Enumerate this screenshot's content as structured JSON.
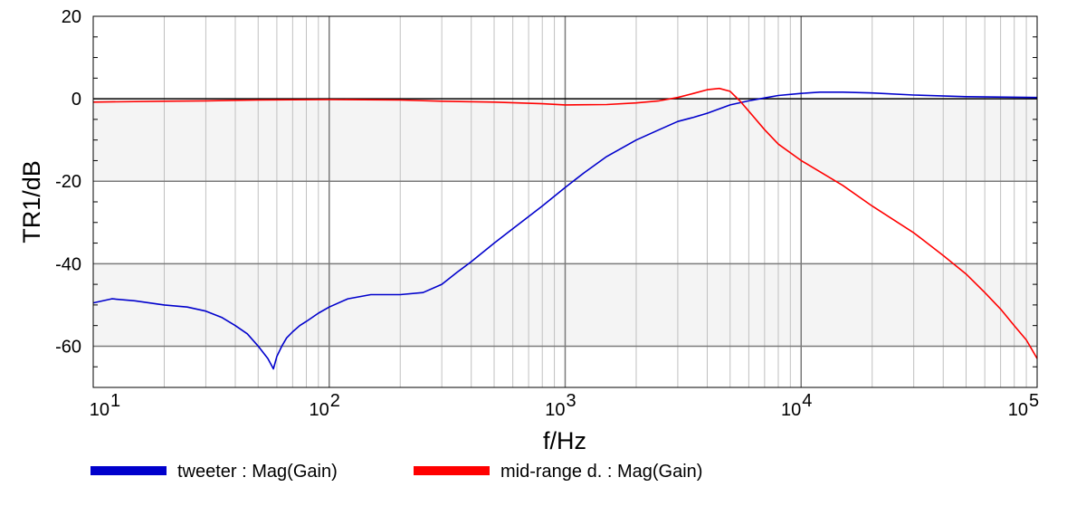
{
  "chart_data": {
    "type": "line",
    "xlabel": "f/Hz",
    "ylabel": "TR1/dB",
    "xscale": "log",
    "xlim": [
      10,
      100000
    ],
    "ylim": [
      -70,
      20
    ],
    "grid": true,
    "legend_position": "bottom",
    "x_tick_labels": [
      {
        "base": "10",
        "exp": "1"
      },
      {
        "base": "10",
        "exp": "2"
      },
      {
        "base": "10",
        "exp": "3"
      },
      {
        "base": "10",
        "exp": "4"
      },
      {
        "base": "10",
        "exp": "5"
      }
    ],
    "y_tick_labels": [
      "20",
      "0",
      "-20",
      "-40",
      "-60"
    ],
    "series": [
      {
        "name": "tweeter : Mag(Gain)",
        "color": "#0000cc",
        "x": [
          10,
          12,
          15,
          20,
          25,
          30,
          35,
          40,
          45,
          50,
          55,
          58,
          60,
          63,
          66,
          70,
          75,
          80,
          90,
          100,
          120,
          150,
          200,
          250,
          300,
          350,
          400,
          500,
          600,
          800,
          1000,
          1200,
          1500,
          2000,
          2500,
          3000,
          3500,
          4000,
          5000,
          6000,
          7000,
          8000,
          10000,
          12000,
          15000,
          20000,
          30000,
          50000,
          100000
        ],
        "y": [
          -49.5,
          -48.5,
          -49,
          -50,
          -50.5,
          -51.5,
          -53,
          -55,
          -57,
          -60,
          -63,
          -65.5,
          -62.5,
          -60,
          -58,
          -56.5,
          -55,
          -54,
          -52,
          -50.5,
          -48.5,
          -47.5,
          -47.5,
          -47,
          -45,
          -42,
          -39.5,
          -35,
          -31.5,
          -26,
          -21.5,
          -18,
          -14,
          -10,
          -7.5,
          -5.5,
          -4.5,
          -3.5,
          -1.5,
          -0.5,
          0.2,
          0.8,
          1.3,
          1.6,
          1.6,
          1.4,
          0.9,
          0.5,
          0.3
        ]
      },
      {
        "name": "mid-range d. : Mag(Gain)",
        "color": "#ff0000",
        "x": [
          10,
          20,
          30,
          50,
          100,
          200,
          300,
          500,
          800,
          1000,
          1500,
          2000,
          2500,
          3000,
          3500,
          4000,
          4500,
          5000,
          5500,
          6000,
          7000,
          8000,
          10000,
          15000,
          20000,
          30000,
          40000,
          50000,
          60000,
          70000,
          80000,
          90000,
          100000
        ],
        "y": [
          -0.8,
          -0.6,
          -0.5,
          -0.3,
          -0.2,
          -0.3,
          -0.6,
          -0.8,
          -1.2,
          -1.5,
          -1.4,
          -1.0,
          -0.5,
          0.3,
          1.3,
          2.2,
          2.5,
          1.8,
          -0.5,
          -3,
          -7.5,
          -11,
          -15,
          -21,
          -26,
          -32.5,
          -38,
          -42.5,
          -47,
          -51,
          -55,
          -58.5,
          -63
        ]
      }
    ]
  }
}
